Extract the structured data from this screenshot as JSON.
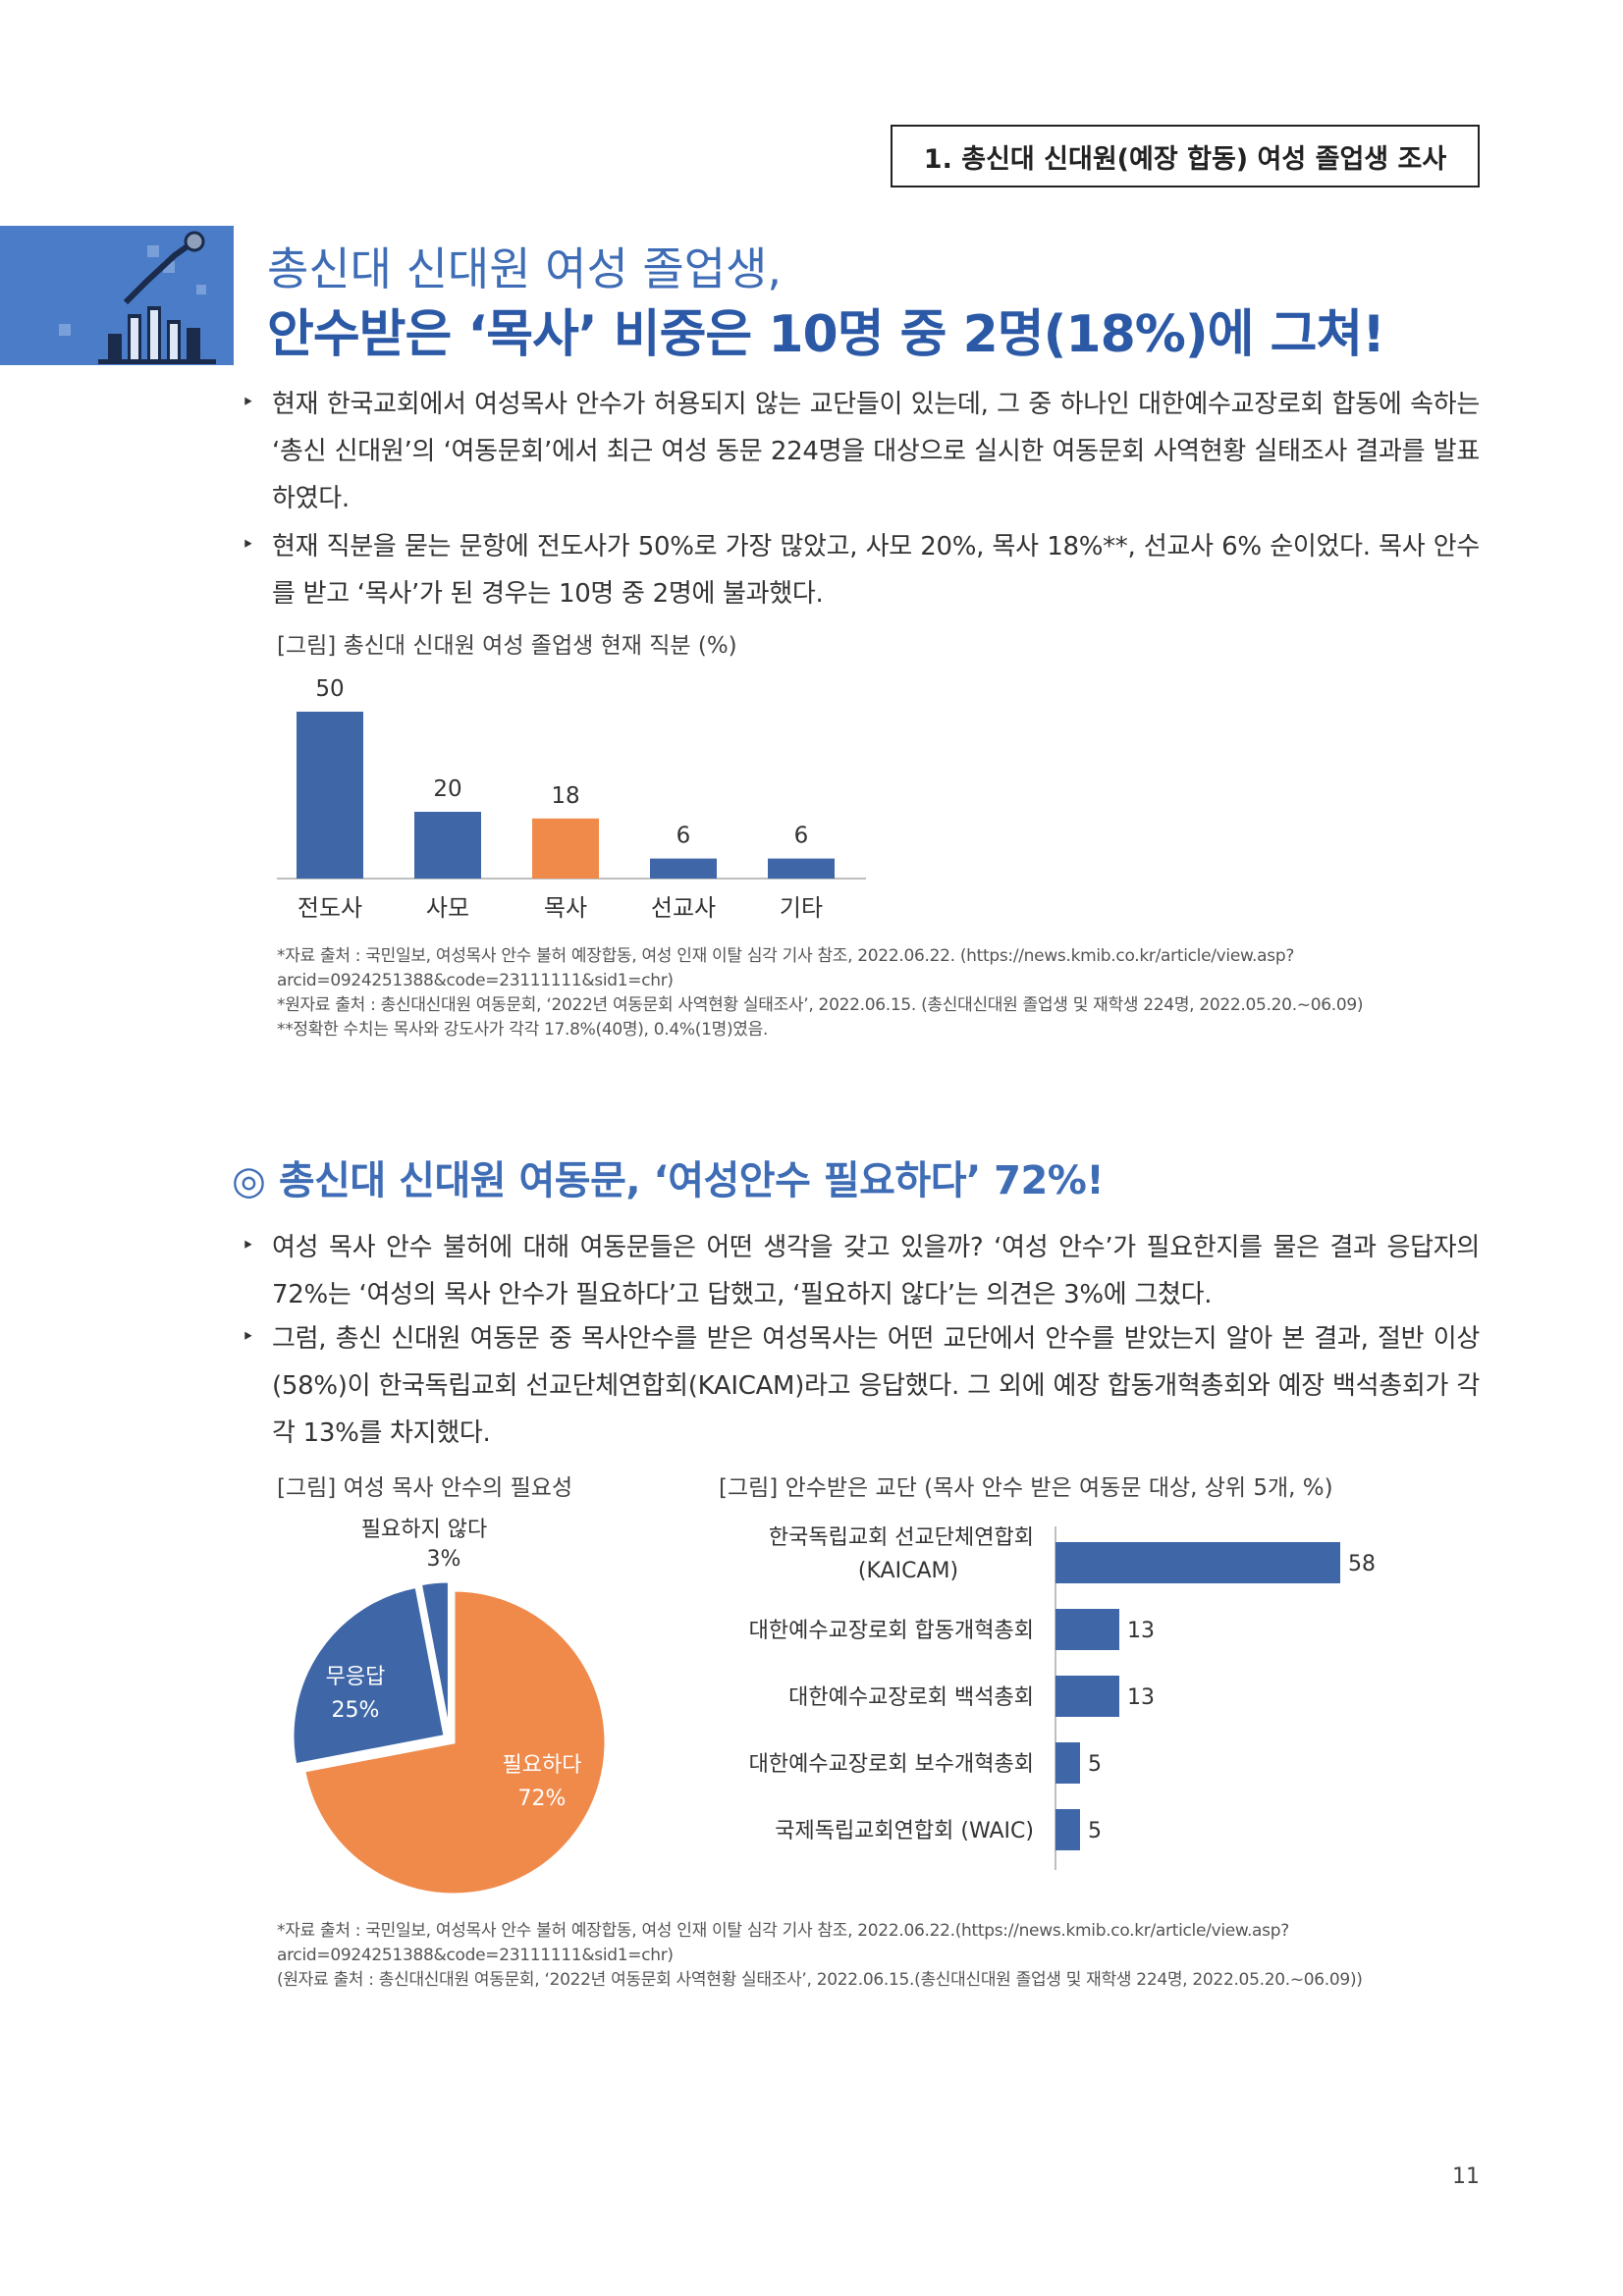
{
  "header": {
    "box_label": "1. 총신대 신대원(예장 합동) 여성 졸업생 조사"
  },
  "hero": {
    "icon": "bar-chart-illustration-icon",
    "title_line1": "총신대 신대원 여성 졸업생,",
    "title_line2": "안수받은 ‘목사’ 비중은 10명 중 2명(18%)에 그쳐!"
  },
  "section1": {
    "paragraphs": [
      "현재 한국교회에서 여성목사 안수가 허용되지 않는 교단들이 있는데, 그 중 하나인 대한예수교장로회 합동에 속하는 ‘총신 신대원’의 ‘여동문회’에서 최근 여성 동문 224명을 대상으로 실시한 여동문회 사역현황 실태조사 결과를 발표하였다.",
      "현재 직분을 묻는 문항에 전도사가 50%로 가장 많았고, 사모 20%, 목사 18%**, 선교사 6% 순이었다. 목사 안수를 받고 ‘목사’가 된 경우는 10명 중 2명에 불과했다."
    ],
    "bullet_glyph": "‣",
    "figure_caption": "[그림] 총신대 신대원 여성 졸업생 현재 직분 (%)",
    "notes": [
      "*자료 출처 : 국민일보, 여성목사 안수 불허 예장합동, 여성 인재 이탈 심각 기사 참조, 2022.06.22. (https://news.kmib.co.kr/article/view.asp?",
      "arcid=0924251388&code=23111111&sid1=chr)",
      "*원자료 출처 : 총신대신대원 여동문회, ‘2022년 여동문회 사역현황 실태조사’, 2022.06.15. (총신대신대원 졸업생 및 재학생 224명, 2022.05.20.~06.09)",
      "**정확한 수치는 목사와 강도사가 각각 17.8%(40명), 0.4%(1명)였음."
    ]
  },
  "section2": {
    "title": "◎ 총신대 신대원 여동문, ‘여성안수 필요하다’ 72%!",
    "paragraphs": [
      "여성 목사 안수 불허에 대해 여동문들은 어떤 생각을 갖고 있을까? ‘여성 안수’가 필요한지를 물은 결과 응답자의 72%는 ‘여성의 목사 안수가 필요하다’고 답했고, ‘필요하지 않다’는 의견은 3%에 그쳤다.",
      "그럼, 총신 신대원 여동문 중 목사안수를 받은 여성목사는 어떤 교단에서 안수를 받았는지 알아 본 결과, 절반 이상(58%)이 한국독립교회 선교단체연합회(KAICAM)라고 응답했다. 그 외에 예장 합동개혁총회와 예장 백석총회가 각각 13%를 차지했다."
    ],
    "pie_caption": "[그림] 여성 목사 안수의 필요성",
    "hbar_caption": "[그림] 안수받은 교단 (목사 안수 받은 여동문 대상, 상위 5개, %)",
    "notes": [
      "*자료 출처 : 국민일보, 여성목사 안수 불허 예장합동, 여성 인재 이탈 심각 기사 참조, 2022.06.22.(https://news.kmib.co.kr/article/view.asp?",
      "arcid=0924251388&code=23111111&sid1=chr)",
      "(원자료 출처 : 총신대신대원 여동문회, ‘2022년 여동문회 사역현황 실태조사’, 2022.06.15.(총신대신대원 졸업생 및 재학생 224명, 2022.05.20.~06.09))"
    ]
  },
  "page_number": "11",
  "chart_data": [
    {
      "type": "bar",
      "title": "[그림] 총신대 신대원 여성 졸업생 현재 직분 (%)",
      "categories": [
        "전도사",
        "사모",
        "목사",
        "선교사",
        "기타"
      ],
      "values": [
        50,
        20,
        18,
        6,
        6
      ],
      "value_labels": [
        "50",
        "20",
        "18",
        "6",
        "6"
      ],
      "colors": [
        "#3f67a8",
        "#3f67a8",
        "#f08a4b",
        "#3f67a8",
        "#3f67a8"
      ],
      "ylim": [
        0,
        50
      ],
      "grid": false
    },
    {
      "type": "pie",
      "title": "[그림] 여성 목사 안수의 필요성",
      "slices": [
        {
          "label": "필요하다",
          "value": 72,
          "value_label": "72%",
          "color": "#f08a4b"
        },
        {
          "label": "무응답",
          "value": 25,
          "value_label": "25%",
          "color": "#3f67a8"
        },
        {
          "label": "필요하지 않다",
          "value": 3,
          "value_label": "3%",
          "color": "#3f67a8"
        }
      ]
    },
    {
      "type": "bar",
      "orientation": "horizontal",
      "title": "[그림] 안수받은 교단 (목사 안수 받은 여동문 대상, 상위 5개, %)",
      "categories": [
        [
          "한국독립교회 선교단체연합회",
          "(KAICAM)"
        ],
        [
          "대한예수교장로회 합동개혁총회"
        ],
        [
          "대한예수교장로회 백석총회"
        ],
        [
          "대한예수교장로회 보수개혁총회"
        ],
        [
          "국제독립교회연합회 (WAIC)"
        ]
      ],
      "values": [
        58,
        13,
        13,
        5,
        5
      ],
      "value_labels": [
        "58",
        "13",
        "13",
        "5",
        "5"
      ],
      "color": "#3f67a8",
      "xlim": [
        0,
        58
      ],
      "grid": false
    }
  ]
}
